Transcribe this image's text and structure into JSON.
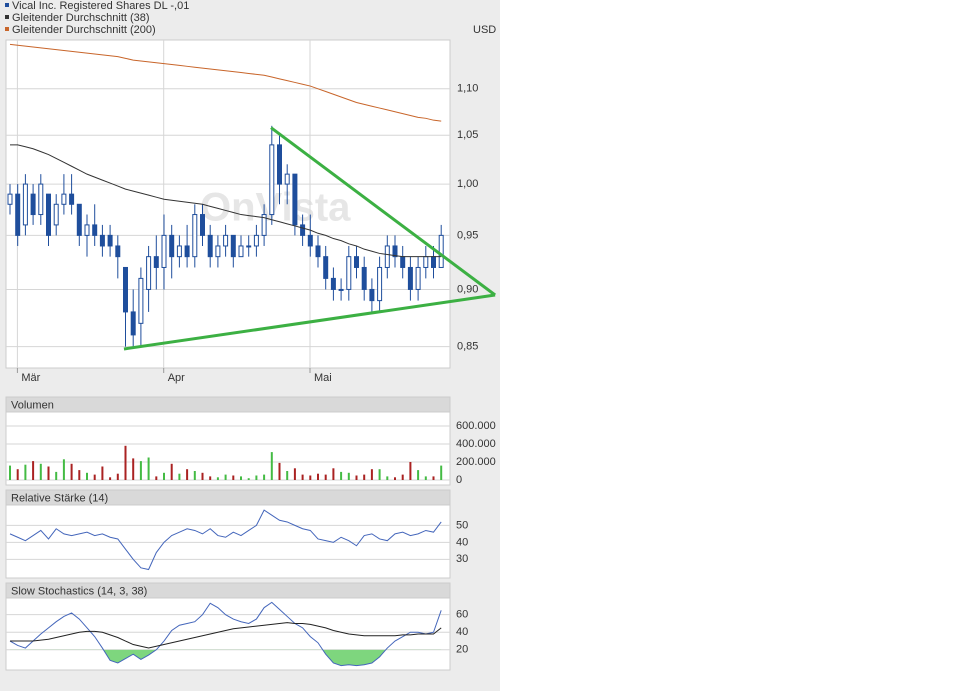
{
  "chart_data": [
    {
      "type": "candlestick",
      "unit": "USD",
      "watermark": "OnVista",
      "log_scale": true,
      "grid": true,
      "categories": [
        null,
        null,
        "Mär",
        null,
        null,
        null,
        null,
        null,
        null,
        null,
        null,
        null,
        null,
        null,
        null,
        null,
        null,
        null,
        null,
        null,
        null,
        "Apr",
        null,
        null,
        null,
        null,
        null,
        null,
        null,
        null,
        null,
        null,
        null,
        null,
        null,
        null,
        null,
        null,
        null,
        null,
        "Mai",
        null,
        null,
        null,
        null,
        null,
        null,
        null,
        null,
        null,
        null,
        null,
        null,
        null,
        null,
        null,
        null
      ],
      "ylim": [
        0.832,
        1.155
      ],
      "yticks": [
        {
          "value": 0.85,
          "label": "0,85"
        },
        {
          "value": 0.9,
          "label": "0,90"
        },
        {
          "value": 0.95,
          "label": "0,95"
        },
        {
          "value": 1.0,
          "label": "1,00"
        },
        {
          "value": 1.05,
          "label": "1,05"
        },
        {
          "value": 1.1,
          "label": "1,10"
        }
      ],
      "series": [
        {
          "name": "Vical Inc. Registered Shares DL -,01",
          "color": "#1f4e9c",
          "open": [
            0.98,
            0.99,
            0.96,
            0.99,
            0.97,
            0.99,
            0.96,
            0.98,
            0.99,
            0.98,
            0.95,
            0.96,
            0.95,
            0.95,
            0.94,
            0.92,
            0.88,
            0.87,
            0.9,
            0.93,
            0.92,
            0.95,
            0.93,
            0.94,
            0.93,
            0.97,
            0.95,
            0.93,
            0.94,
            0.95,
            0.93,
            0.94,
            0.94,
            0.95,
            0.97,
            1.04,
            1.0,
            1.01,
            0.96,
            0.95,
            0.94,
            0.93,
            0.91,
            0.9,
            0.9,
            0.93,
            0.92,
            0.9,
            0.89,
            0.92,
            0.94,
            0.93,
            0.92,
            0.9,
            0.92,
            0.93,
            0.92
          ],
          "high": [
            1.0,
            1.0,
            1.01,
            1.0,
            1.01,
            0.99,
            0.99,
            1.01,
            1.01,
            0.98,
            0.97,
            0.98,
            0.96,
            0.96,
            0.95,
            0.92,
            0.9,
            0.92,
            0.94,
            0.95,
            0.97,
            0.96,
            0.95,
            0.96,
            0.98,
            0.98,
            0.96,
            0.95,
            0.96,
            0.95,
            0.95,
            0.95,
            0.96,
            0.98,
            1.06,
            1.05,
            1.02,
            1.01,
            0.97,
            0.97,
            0.95,
            0.94,
            0.92,
            0.91,
            0.94,
            0.94,
            0.93,
            0.91,
            0.93,
            0.95,
            0.95,
            0.94,
            0.93,
            0.93,
            0.94,
            0.94,
            0.96
          ],
          "low": [
            0.97,
            0.94,
            0.95,
            0.96,
            0.96,
            0.94,
            0.95,
            0.97,
            0.97,
            0.94,
            0.93,
            0.94,
            0.93,
            0.93,
            0.91,
            0.85,
            0.85,
            0.85,
            0.88,
            0.9,
            0.9,
            0.91,
            0.92,
            0.92,
            0.92,
            0.94,
            0.92,
            0.92,
            0.93,
            0.92,
            0.93,
            0.93,
            0.93,
            0.94,
            0.96,
            0.98,
            0.98,
            0.95,
            0.94,
            0.93,
            0.92,
            0.9,
            0.89,
            0.89,
            0.89,
            0.91,
            0.89,
            0.88,
            0.88,
            0.91,
            0.92,
            0.91,
            0.89,
            0.89,
            0.91,
            0.91,
            0.92
          ],
          "close": [
            0.99,
            0.95,
            1.0,
            0.97,
            1.0,
            0.95,
            0.98,
            0.99,
            0.98,
            0.95,
            0.96,
            0.95,
            0.94,
            0.94,
            0.93,
            0.88,
            0.86,
            0.91,
            0.93,
            0.92,
            0.95,
            0.93,
            0.94,
            0.93,
            0.97,
            0.95,
            0.93,
            0.94,
            0.95,
            0.93,
            0.94,
            0.94,
            0.95,
            0.97,
            1.04,
            1.0,
            1.01,
            0.96,
            0.95,
            0.94,
            0.93,
            0.91,
            0.9,
            0.9,
            0.93,
            0.92,
            0.9,
            0.89,
            0.92,
            0.94,
            0.93,
            0.92,
            0.9,
            0.92,
            0.93,
            0.92,
            0.95
          ]
        },
        {
          "name": "Gleitender Durchschnitt (38)",
          "color": "#333333",
          "values": [
            1.04,
            1.04,
            1.038,
            1.036,
            1.033,
            1.03,
            1.026,
            1.022,
            1.018,
            1.014,
            1.01,
            1.007,
            1.004,
            1.001,
            0.998,
            0.995,
            0.993,
            0.991,
            0.989,
            0.987,
            0.985,
            0.984,
            0.983,
            0.982,
            0.981,
            0.98,
            0.978,
            0.976,
            0.974,
            0.972,
            0.97,
            0.969,
            0.968,
            0.967,
            0.965,
            0.963,
            0.961,
            0.959,
            0.957,
            0.955,
            0.952,
            0.95,
            0.947,
            0.945,
            0.942,
            0.94,
            0.937,
            0.935,
            0.933,
            0.932,
            0.931,
            0.93,
            0.93,
            0.93,
            0.93,
            0.93,
            0.93
          ]
        },
        {
          "name": "Gleitender Durchschnitt (200)",
          "color": "#c8652a",
          "values": [
            1.15,
            1.149,
            1.148,
            1.147,
            1.146,
            1.145,
            1.144,
            1.143,
            1.142,
            1.141,
            1.14,
            1.139,
            1.138,
            1.137,
            1.136,
            1.134,
            1.132,
            1.131,
            1.13,
            1.129,
            1.128,
            1.127,
            1.126,
            1.125,
            1.124,
            1.123,
            1.122,
            1.121,
            1.12,
            1.119,
            1.118,
            1.117,
            1.116,
            1.115,
            1.113,
            1.111,
            1.109,
            1.107,
            1.105,
            1.103,
            1.1,
            1.097,
            1.094,
            1.091,
            1.088,
            1.085,
            1.083,
            1.081,
            1.079,
            1.077,
            1.075,
            1.073,
            1.071,
            1.069,
            1.068,
            1.066,
            1.065
          ]
        }
      ],
      "trendline_color": "#3cb043",
      "trendlines": [
        {
          "x": [
            14.8,
            63
          ],
          "y": [
            0.848,
            0.895
          ]
        },
        {
          "x": [
            33.9,
            63
          ],
          "y": [
            1.058,
            0.895
          ]
        }
      ]
    },
    {
      "type": "bar",
      "title": "Volumen",
      "up_color": "#44bb44",
      "down_color": "#aa2222",
      "ylim": [
        0,
        700000
      ],
      "yticks": [
        0,
        {
          "value": 200000,
          "label": "200.000"
        },
        {
          "value": 400000,
          "label": "400.000"
        },
        {
          "value": 600000,
          "label": "600.000"
        }
      ],
      "values": [
        160000,
        120000,
        170000,
        210000,
        180000,
        150000,
        90000,
        230000,
        180000,
        110000,
        80000,
        60000,
        150000,
        30000,
        70000,
        380000,
        240000,
        210000,
        250000,
        40000,
        80000,
        180000,
        70000,
        120000,
        100000,
        80000,
        40000,
        30000,
        60000,
        50000,
        40000,
        20000,
        50000,
        60000,
        310000,
        190000,
        100000,
        130000,
        60000,
        50000,
        70000,
        60000,
        130000,
        90000,
        80000,
        50000,
        60000,
        120000,
        120000,
        40000,
        30000,
        60000,
        200000,
        110000,
        40000,
        40000,
        160000
      ]
    },
    {
      "type": "line",
      "title": "Relative Stärke (14)",
      "color": "#4466bb",
      "ylim": [
        19,
        62
      ],
      "yticks": [
        30,
        40,
        50
      ],
      "values": [
        45,
        43,
        41,
        44,
        47,
        42,
        48,
        45,
        44,
        45,
        46,
        44,
        45,
        43,
        42,
        36,
        30,
        25,
        24,
        34,
        40,
        44,
        46,
        48,
        47,
        45,
        48,
        44,
        43,
        46,
        44,
        47,
        50,
        59,
        56,
        53,
        52,
        50,
        48,
        47,
        42,
        41,
        40,
        43,
        41,
        38,
        44,
        45,
        42,
        41,
        45,
        46,
        44,
        45,
        47,
        46,
        52
      ]
    },
    {
      "type": "line",
      "title": "Slow Stochastics (14, 3, 38)",
      "fill_below": 20,
      "fill_color": "#7ed67e",
      "ylim": [
        -3,
        79
      ],
      "yticks": [
        20,
        40,
        60
      ],
      "series": [
        {
          "color": "#4466bb",
          "values": [
            30,
            25,
            22,
            30,
            38,
            45,
            52,
            58,
            62,
            55,
            45,
            35,
            22,
            8,
            5,
            10,
            15,
            9,
            14,
            20,
            30,
            42,
            48,
            50,
            52,
            60,
            73,
            68,
            60,
            55,
            52,
            50,
            55,
            68,
            74,
            66,
            58,
            50,
            45,
            35,
            28,
            15,
            5,
            2,
            3,
            2,
            3,
            5,
            12,
            22,
            30,
            35,
            40,
            40,
            38,
            40,
            65
          ]
        },
        {
          "color": "#222222",
          "values": [
            30,
            30,
            30,
            30,
            31,
            32,
            34,
            36,
            38,
            40,
            41,
            41,
            40,
            37,
            34,
            30,
            26,
            24,
            22,
            24,
            26,
            28,
            30,
            32,
            34,
            36,
            38,
            40,
            42,
            44,
            45,
            46,
            47,
            48,
            49,
            50,
            51,
            50,
            50,
            49,
            47,
            45,
            42,
            40,
            38,
            37,
            36,
            36,
            36,
            36,
            36,
            37,
            37,
            38,
            38,
            38,
            45
          ]
        }
      ]
    }
  ]
}
